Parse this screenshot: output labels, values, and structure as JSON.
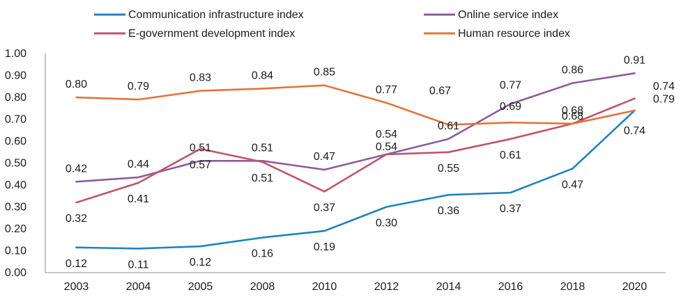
{
  "chart_data": {
    "type": "line",
    "title": "",
    "xlabel": "",
    "ylabel": "",
    "categories": [
      "2003",
      "2004",
      "2005",
      "2008",
      "2010",
      "2012",
      "2014",
      "2016",
      "2018",
      "2020"
    ],
    "ylim": [
      0,
      1
    ],
    "yticks": [
      "0.00",
      "0.10",
      "0.20",
      "0.30",
      "0.40",
      "0.50",
      "0.60",
      "0.70",
      "0.80",
      "0.90",
      "1.00"
    ],
    "grid": false,
    "legend_position": "top",
    "series": [
      {
        "key": "communication",
        "name": "Communication infrastructure index",
        "color": "#1f82c0",
        "values": [
          0.115,
          0.11,
          0.12,
          0.16,
          0.19,
          0.3,
          0.355,
          0.365,
          0.475,
          0.74
        ],
        "labels": [
          "0.12",
          "0.11",
          "0.12",
          "0.16",
          "0.19",
          "0.30",
          "0.36",
          "0.37",
          "0.47",
          "0.74"
        ]
      },
      {
        "key": "egov",
        "name": "E-government development index",
        "color": "#c0546a",
        "values": [
          0.32,
          0.41,
          0.565,
          0.505,
          0.37,
          0.54,
          0.55,
          0.61,
          0.68,
          0.795
        ],
        "labels": [
          "0.32",
          "0.41",
          "0.57",
          "0.51",
          "0.37",
          "0.54",
          "0.55",
          "0.61",
          "0.68",
          "0.79"
        ]
      },
      {
        "key": "online",
        "name": "Online service index",
        "color": "#8e5a9b",
        "values": [
          0.415,
          0.435,
          0.51,
          0.51,
          0.47,
          0.54,
          0.61,
          0.77,
          0.865,
          0.91
        ],
        "labels": [
          "0.42",
          "0.44",
          "0.51",
          "0.51",
          "0.47",
          "0.54",
          "0.61",
          "0.77",
          "0.86",
          "0.91"
        ]
      },
      {
        "key": "human",
        "name": "Human resource index",
        "color": "#e2743a",
        "values": [
          0.8,
          0.79,
          0.83,
          0.84,
          0.855,
          0.775,
          0.675,
          0.685,
          0.68,
          0.74
        ],
        "labels": [
          "0.80",
          "0.79",
          "0.83",
          "0.84",
          "0.85",
          "0.77",
          "0.67",
          "0.69",
          "0.68",
          "0.74"
        ]
      }
    ]
  }
}
